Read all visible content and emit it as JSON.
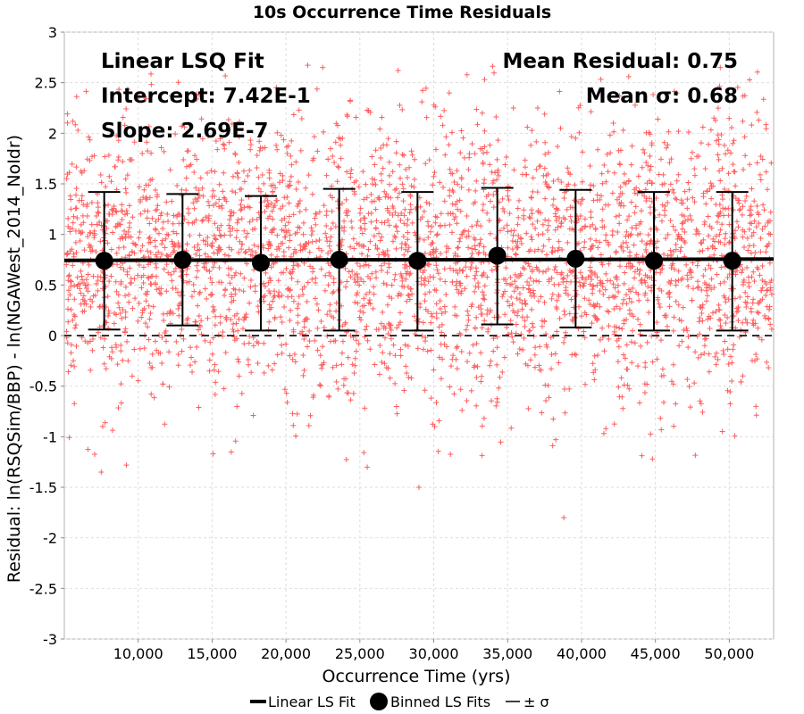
{
  "chart_data": {
    "type": "scatter",
    "title": "10s Occurrence Time Residuals",
    "xlabel": "Occurrence Time (yrs)",
    "ylabel": "Residual: ln(RSQSim/BBP) - ln(NGAWest_2014_NoIdr)",
    "xlim": [
      5000,
      53000
    ],
    "ylim": [
      -3,
      3
    ],
    "x_ticks": [
      10000,
      15000,
      20000,
      25000,
      30000,
      35000,
      40000,
      45000,
      50000
    ],
    "x_tick_labels": [
      "10,000",
      "15,000",
      "20,000",
      "25,000",
      "30,000",
      "35,000",
      "40,000",
      "45,000",
      "50,000"
    ],
    "y_ticks": [
      -3,
      -2.5,
      -2,
      -1.5,
      -1,
      -0.5,
      0,
      0.5,
      1,
      1.5,
      2,
      2.5,
      3
    ],
    "y_tick_labels": [
      "-3",
      "-2.5",
      "-2",
      "-1.5",
      "-1",
      "-0.5",
      "0",
      "0.5",
      "1",
      "1.5",
      "2",
      "2.5",
      "3"
    ],
    "grid": true,
    "scatter_color": "#ff4d4d",
    "residual_scatter": {
      "description_range_x": [
        5000,
        53000
      ],
      "mean": 0.75,
      "sigma": 0.68,
      "outliers": [
        [
          25500,
          -1.3
        ],
        [
          29000,
          -1.5
        ],
        [
          38800,
          -1.8
        ],
        [
          7500,
          -1.35
        ],
        [
          9200,
          -1.28
        ],
        [
          44800,
          -1.22
        ]
      ]
    },
    "linear_fit": {
      "name": "Linear LS Fit",
      "intercept": 0.742,
      "slope": 2.69e-07,
      "x_range": [
        5000,
        53000
      ]
    },
    "binned_fits": {
      "name": "Binned LS Fits",
      "x": [
        7700,
        13000,
        18300,
        23600,
        28900,
        34300,
        39600,
        44900,
        50200
      ],
      "mean": [
        0.74,
        0.75,
        0.72,
        0.75,
        0.74,
        0.79,
        0.76,
        0.74,
        0.74
      ],
      "upper": [
        1.42,
        1.4,
        1.38,
        1.45,
        1.42,
        1.46,
        1.44,
        1.42,
        1.42
      ],
      "lower": [
        0.06,
        0.1,
        0.05,
        0.05,
        0.05,
        0.11,
        0.08,
        0.05,
        0.05
      ]
    },
    "sigma_legend_name": "± σ",
    "zero_line": 0,
    "annotations": {
      "fit_title": "Linear LSQ Fit",
      "intercept": "Intercept: 7.42E-1",
      "slope": "Slope: 2.69E-7",
      "mean_residual": "Mean Residual: 0.75",
      "mean_sigma": "Mean σ: 0.68"
    },
    "legend_position": "bottom"
  }
}
